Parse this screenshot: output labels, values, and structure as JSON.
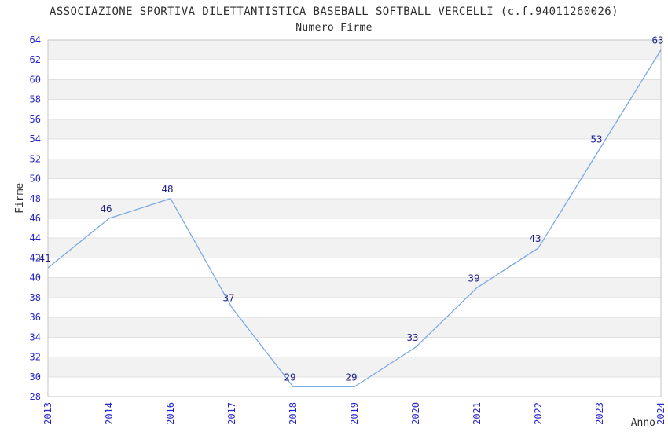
{
  "header": {
    "title": "ASSOCIAZIONE SPORTIVA DILETTANTISTICA BASEBALL SOFTBALL VERCELLI (c.f.94011260026)",
    "subtitle": "Numero Firme"
  },
  "axes": {
    "y_label": "Firme",
    "x_label": "Anno"
  },
  "chart_data": {
    "type": "line",
    "title": "ASSOCIAZIONE SPORTIVA DILETTANTISTICA BASEBALL SOFTBALL VERCELLI (c.f.94011260026)",
    "subtitle": "Numero Firme",
    "categories": [
      "2013",
      "2014",
      "2016",
      "2017",
      "2018",
      "2019",
      "2020",
      "2021",
      "2022",
      "2023",
      "2024"
    ],
    "series": [
      {
        "name": "Numero Firme",
        "values": [
          41,
          46,
          48,
          37,
          29,
          29,
          33,
          39,
          43,
          53,
          63
        ]
      }
    ],
    "xlabel": "Anno",
    "ylabel": "Firme",
    "ylim": [
      28,
      64
    ],
    "ytick_step": 2,
    "yticks": [
      28,
      30,
      32,
      34,
      36,
      38,
      40,
      42,
      44,
      46,
      48,
      50,
      52,
      54,
      56,
      58,
      60,
      62,
      64
    ],
    "grid": "horizontal alternating bands every 2 units",
    "legend": "none",
    "markers": "none",
    "data_labels_visible": true,
    "x_tick_rotation": 90,
    "colors": {
      "line": "#7CA9E4",
      "tick_label": "#2525CE",
      "data_label": "#1E1E8C",
      "band": "#F2F2F2",
      "gridline": "#E0E0E0",
      "plot_border": "#C6C6C6",
      "title_text": "#2E2E2E",
      "background": "#FFFFFF"
    }
  }
}
